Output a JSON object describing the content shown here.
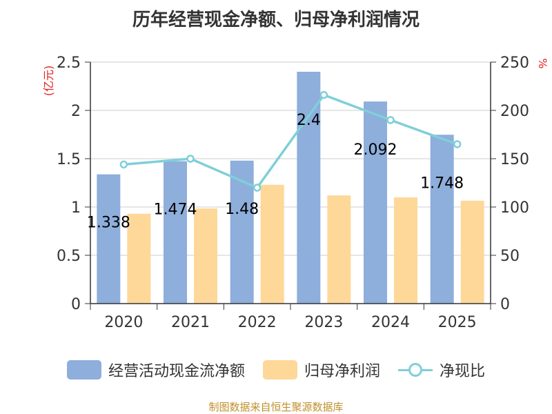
{
  "title": "历年经营现金净额、归母净利润情况",
  "source": "制图数据来自恒生聚源数据库",
  "chart_data": {
    "type": "bar",
    "title": "历年经营现金净额、归母净利润情况",
    "categories": [
      "2020",
      "2021",
      "2022",
      "2023",
      "2024",
      "2025"
    ],
    "ylabel": "(亿元)",
    "y2label": "%",
    "ylim": [
      0,
      2.5
    ],
    "y2lim": [
      0,
      250
    ],
    "yticks": [
      "0",
      "0.5",
      "1",
      "1.5",
      "2",
      "2.5"
    ],
    "y2ticks": [
      "0",
      "50",
      "100",
      "150",
      "200",
      "250"
    ],
    "grid": true,
    "legend_position": "bottom",
    "series": [
      {
        "name": "经营活动现金流净额",
        "type": "bar",
        "axis": "left",
        "color": "#8eaedb",
        "values": [
          1.338,
          1.474,
          1.48,
          2.4,
          2.092,
          1.748
        ],
        "labels": [
          "1.338",
          "1.474",
          "1.48",
          "2.4",
          "2.092",
          "1.748"
        ]
      },
      {
        "name": "归母净利润",
        "type": "bar",
        "axis": "left",
        "color": "#fed899",
        "values": [
          0.93,
          0.985,
          1.23,
          1.12,
          1.1,
          1.065
        ]
      },
      {
        "name": "净现比",
        "type": "line",
        "axis": "right",
        "color": "#7fcfd8",
        "values": [
          144,
          150,
          120,
          216,
          190,
          165
        ]
      }
    ]
  }
}
